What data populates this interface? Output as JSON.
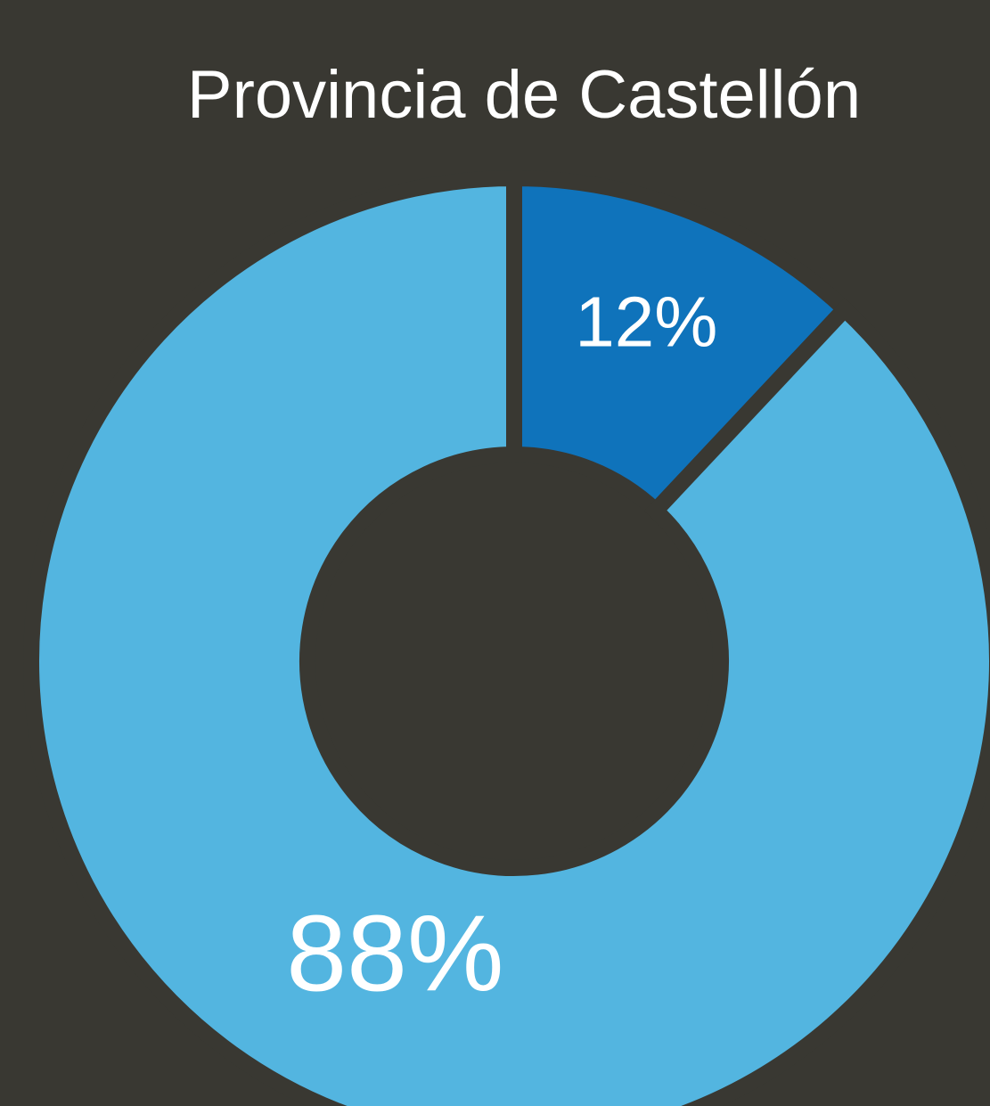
{
  "chart_data": {
    "type": "donut",
    "title": "Provincia de Castellón",
    "values": [
      12,
      88
    ],
    "value_labels": [
      "12%",
      "88%"
    ],
    "colors": [
      "#0f73bb",
      "#53b5e0"
    ]
  }
}
